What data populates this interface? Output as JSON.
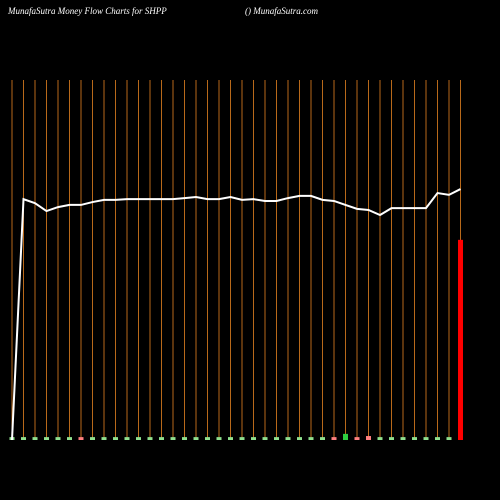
{
  "chart_data": {
    "type": "money-flow",
    "title": "MunafaSutra  Money Flow  Charts for SHPP",
    "subtitle": "() MunafaSutra.com",
    "categories": [
      null,
      null,
      null,
      null,
      null,
      null,
      null,
      null,
      null,
      null,
      null,
      null,
      null,
      null,
      null,
      null,
      null,
      null,
      null,
      null,
      null,
      null,
      null,
      null,
      null,
      null,
      null,
      null,
      null,
      null,
      null,
      null,
      null,
      null,
      null,
      null,
      null,
      null,
      null,
      null
    ],
    "ylim": [
      0,
      100
    ],
    "grid": true,
    "grid_color": "#b8691a",
    "background": "#000000",
    "series": [
      {
        "kind": "line",
        "color": "#ffffff",
        "values": [
          0,
          66.9,
          65.8,
          63.6,
          64.7,
          65.3,
          65.3,
          66.1,
          66.7,
          66.7,
          66.9,
          66.9,
          66.9,
          66.9,
          66.9,
          67.2,
          67.5,
          66.9,
          66.9,
          67.5,
          66.7,
          66.9,
          66.4,
          66.4,
          67.2,
          67.8,
          67.8,
          66.7,
          66.4,
          65.3,
          64.2,
          63.9,
          62.5,
          64.4,
          64.4,
          64.4,
          64.4,
          68.6,
          68.1,
          69.7
        ]
      },
      {
        "kind": "bar",
        "colors": [
          "#8fe08f",
          "#8fe08f",
          "#8fe08f",
          "#8fe08f",
          "#8fe08f",
          "#8fe08f",
          "#ff8080",
          "#8fe08f",
          "#8fe08f",
          "#8fe08f",
          "#8fe08f",
          "#8fe08f",
          "#8fe08f",
          "#8fe08f",
          "#8fe08f",
          "#8fe08f",
          "#8fe08f",
          "#8fe08f",
          "#8fe08f",
          "#8fe08f",
          "#8fe08f",
          "#8fe08f",
          "#8fe08f",
          "#8fe08f",
          "#8fe08f",
          "#8fe08f",
          "#8fe08f",
          "#8fe08f",
          "#ff8080",
          "#2ecc40",
          "#ff8080",
          "#ff8080",
          "#8fe08f",
          "#8fe08f",
          "#8fe08f",
          "#8fe08f",
          "#8fe08f",
          "#8fe08f",
          "#8fe08f",
          "#ff0000"
        ],
        "values": [
          0.8,
          0.8,
          0.8,
          0.8,
          0.8,
          0.8,
          0.8,
          0.8,
          0.8,
          0.8,
          0.8,
          0.8,
          0.8,
          0.8,
          0.8,
          0.8,
          0.8,
          0.8,
          0.8,
          0.8,
          0.8,
          0.8,
          0.8,
          0.8,
          0.8,
          0.8,
          0.8,
          0.8,
          0.8,
          1.7,
          0.8,
          1.1,
          0.8,
          0.8,
          0.8,
          0.8,
          0.8,
          0.8,
          0.8,
          55.6
        ]
      }
    ]
  }
}
